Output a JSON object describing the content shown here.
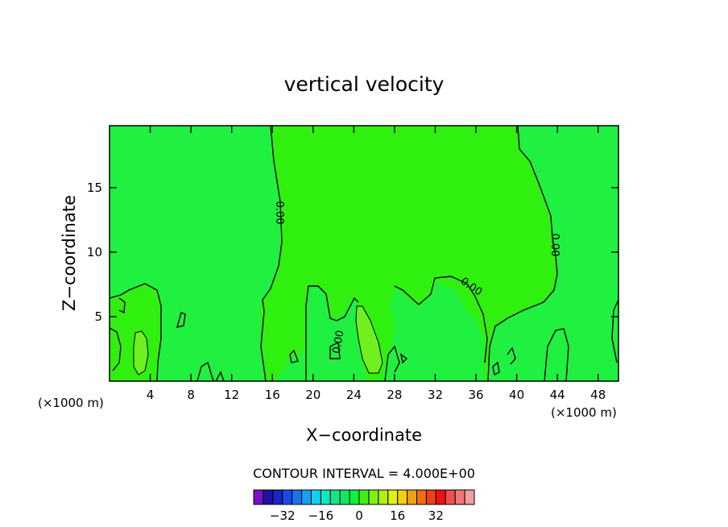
{
  "chart_data": {
    "type": "contour",
    "title": "vertical velocity",
    "xlabel": "X−coordinate",
    "ylabel": "Z−coordinate",
    "x_unit_left": "(×1000 m)",
    "x_unit_right": "(×1000 m)",
    "xlim": [
      0,
      50
    ],
    "ylim": [
      0,
      19.8
    ],
    "xticks": [
      4,
      8,
      12,
      16,
      20,
      24,
      28,
      32,
      36,
      40,
      44,
      48
    ],
    "xtick_labels": [
      "4",
      "8",
      "12",
      "16",
      "20",
      "24",
      "28",
      "32",
      "36",
      "40",
      "44",
      "48"
    ],
    "yticks": [
      5,
      10,
      15
    ],
    "ytick_labels": [
      "5",
      "10",
      "15"
    ],
    "contour_interval_text": "CONTOUR INTERVAL = 4.000E+00",
    "contour_labels": [
      "0.00",
      "0.00",
      "0.00",
      "0.00"
    ],
    "colorbar": {
      "colors": [
        "#7a10c8",
        "#2010a0",
        "#1a22c8",
        "#1a48e8",
        "#1a72f0",
        "#18a0f0",
        "#10d0f0",
        "#10e8c0",
        "#10e890",
        "#10e860",
        "#10f040",
        "#40f010",
        "#80f010",
        "#b0f010",
        "#e0f010",
        "#f0d010",
        "#f0a010",
        "#f07010",
        "#f04010",
        "#f01010",
        "#f05050",
        "#f07878",
        "#f0a0a0"
      ],
      "tick_values": [
        -32,
        -16,
        0,
        16,
        32
      ],
      "tick_labels": [
        "−32",
        "−16",
        "0",
        "16",
        "32"
      ]
    },
    "fill_colors": {
      "background": "#20f040",
      "upper_region": "#30f010",
      "strong_updraft": "#70f020"
    }
  }
}
